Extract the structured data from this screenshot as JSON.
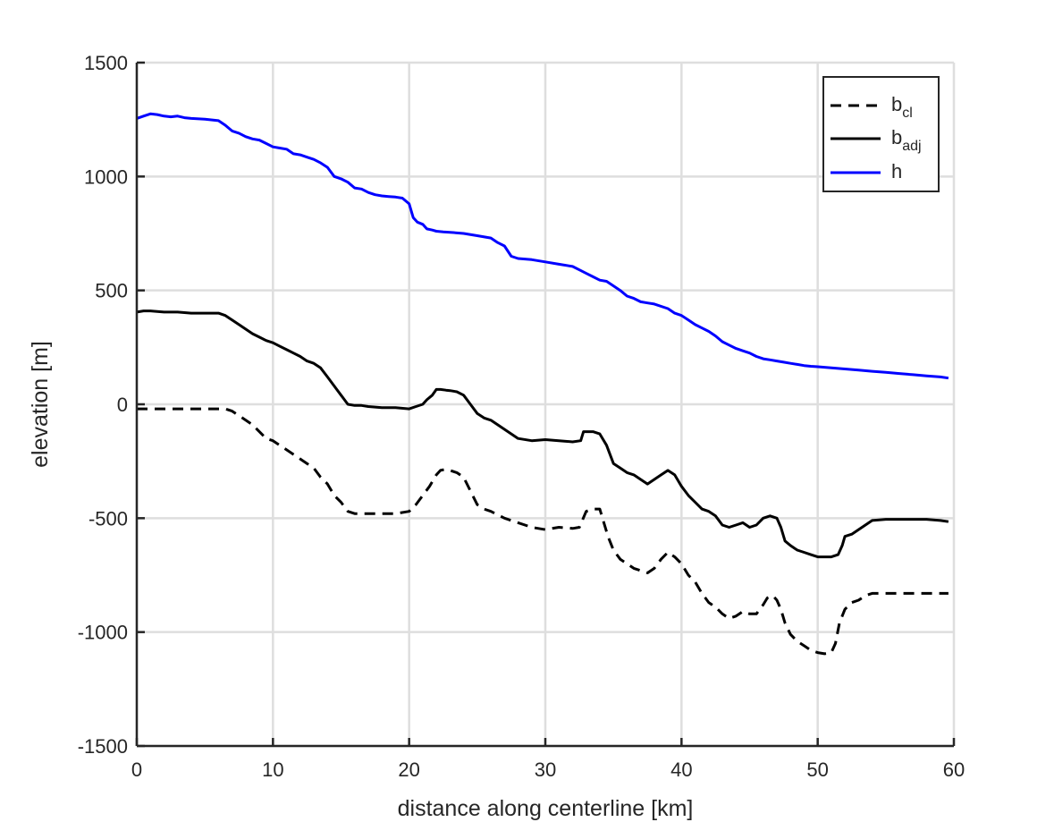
{
  "chart_data": {
    "type": "line",
    "xlabel": "distance along centerline [km]",
    "ylabel": "elevation [m]",
    "xlim": [
      0,
      60
    ],
    "ylim": [
      -1500,
      1500
    ],
    "xticks": [
      0,
      10,
      20,
      30,
      40,
      50,
      60
    ],
    "yticks": [
      -1500,
      -1000,
      -500,
      0,
      500,
      1000,
      1500
    ],
    "xtick_labels": [
      "0",
      "10",
      "20",
      "30",
      "40",
      "50",
      "60"
    ],
    "ytick_labels": [
      "-1500",
      "-1000",
      "-500",
      "0",
      "500",
      "1000",
      "1500"
    ],
    "grid": true,
    "legend_position": "top-right",
    "series": [
      {
        "name": "b_cl",
        "legend_main": "b",
        "legend_sub": "cl",
        "color": "#000000",
        "dash": "dashed",
        "x": [
          0,
          1,
          2,
          3,
          4,
          5,
          6,
          6.5,
          7,
          7.5,
          8,
          8.5,
          9,
          9.5,
          10,
          10.5,
          11,
          11.5,
          12,
          12.5,
          13,
          13.5,
          14,
          14.5,
          15,
          15.5,
          16,
          16.5,
          17,
          18,
          19,
          20,
          20.5,
          21,
          21.5,
          22,
          22.3,
          22.7,
          23,
          23.5,
          24,
          24.5,
          25,
          25.5,
          26,
          27,
          28,
          29,
          30,
          31,
          32,
          32.5,
          33,
          33.5,
          34,
          34.3,
          34.6,
          35,
          35.5,
          36,
          36.5,
          37,
          37.5,
          38,
          38.5,
          39,
          39.5,
          40,
          40.5,
          41,
          41.5,
          42,
          42.5,
          43,
          43.5,
          44,
          44.5,
          45,
          45.5,
          46,
          46.3,
          46.7,
          47,
          47.3,
          47.6,
          48,
          48.5,
          49,
          49.5,
          50,
          50.5,
          51,
          51.3,
          51.6,
          52,
          52.5,
          53,
          53.5,
          54,
          55,
          56,
          57,
          58,
          59,
          59.6
        ],
        "y": [
          -20,
          -20,
          -20,
          -20,
          -20,
          -20,
          -20,
          -20,
          -30,
          -50,
          -70,
          -90,
          -120,
          -150,
          -160,
          -180,
          -200,
          -220,
          -240,
          -260,
          -280,
          -320,
          -350,
          -400,
          -430,
          -470,
          -480,
          -480,
          -480,
          -480,
          -480,
          -470,
          -440,
          -400,
          -360,
          -310,
          -290,
          -285,
          -290,
          -300,
          -320,
          -380,
          -440,
          -460,
          -470,
          -500,
          -520,
          -540,
          -550,
          -540,
          -545,
          -540,
          -470,
          -460,
          -460,
          -520,
          -580,
          -640,
          -680,
          -700,
          -720,
          -730,
          -740,
          -720,
          -680,
          -650,
          -670,
          -700,
          -750,
          -780,
          -830,
          -870,
          -890,
          -920,
          -940,
          -930,
          -910,
          -920,
          -920,
          -880,
          -850,
          -840,
          -860,
          -900,
          -960,
          -1010,
          -1040,
          -1060,
          -1080,
          -1090,
          -1095,
          -1090,
          -1050,
          -960,
          -900,
          -870,
          -860,
          -840,
          -830,
          -830,
          -830,
          -830,
          -830,
          -830,
          -830
        ]
      },
      {
        "name": "b_adj",
        "legend_main": "b",
        "legend_sub": "adj",
        "color": "#000000",
        "dash": "solid",
        "x": [
          0,
          0.5,
          1,
          2,
          3,
          4,
          5,
          6,
          6.5,
          7,
          7.5,
          8,
          8.5,
          9,
          9.5,
          10,
          10.5,
          11,
          11.5,
          12,
          12.5,
          13,
          13.5,
          14,
          14.5,
          15,
          15.5,
          16,
          16.5,
          17,
          18,
          19,
          20,
          20.5,
          21,
          21.3,
          21.7,
          22,
          22.3,
          22.7,
          23,
          23.5,
          24,
          24.5,
          25,
          25.5,
          26,
          27,
          27.5,
          28,
          29,
          30,
          31,
          32,
          32.6,
          32.8,
          33,
          33.5,
          34,
          34.5,
          35,
          35.5,
          36,
          36.5,
          37,
          37.5,
          38,
          38.5,
          39,
          39.5,
          40,
          40.5,
          41,
          41.5,
          42,
          42.5,
          43,
          43.5,
          44,
          44.5,
          45,
          45.5,
          46,
          46.5,
          47,
          47.3,
          47.6,
          48,
          48.5,
          49,
          49.5,
          50,
          50.5,
          51,
          51.5,
          51.8,
          52,
          52.5,
          53,
          53.5,
          54,
          55,
          56,
          57,
          58,
          59,
          59.6
        ],
        "y": [
          405,
          410,
          410,
          405,
          405,
          400,
          400,
          400,
          390,
          370,
          350,
          330,
          310,
          295,
          280,
          270,
          255,
          240,
          225,
          210,
          190,
          180,
          160,
          120,
          80,
          40,
          0,
          -5,
          -5,
          -10,
          -15,
          -15,
          -20,
          -10,
          0,
          20,
          40,
          65,
          65,
          62,
          60,
          55,
          40,
          0,
          -40,
          -60,
          -70,
          -110,
          -130,
          -150,
          -160,
          -155,
          -160,
          -165,
          -160,
          -120,
          -120,
          -120,
          -130,
          -180,
          -260,
          -280,
          -300,
          -310,
          -330,
          -350,
          -330,
          -310,
          -290,
          -310,
          -360,
          -400,
          -430,
          -460,
          -470,
          -490,
          -530,
          -540,
          -530,
          -520,
          -540,
          -530,
          -500,
          -490,
          -500,
          -540,
          -600,
          -620,
          -640,
          -650,
          -660,
          -670,
          -670,
          -670,
          -660,
          -620,
          -580,
          -570,
          -550,
          -530,
          -510,
          -505,
          -505,
          -505,
          -505,
          -510,
          -515
        ]
      },
      {
        "name": "h",
        "legend_main": "h",
        "legend_sub": "",
        "color": "#0000ff",
        "dash": "solid",
        "x": [
          0,
          0.5,
          1,
          1.5,
          2,
          2.5,
          3,
          3.5,
          4,
          5,
          6,
          6.5,
          7,
          7.5,
          8,
          8.5,
          9,
          9.5,
          10,
          10.5,
          11,
          11.5,
          12,
          12.5,
          13,
          13.5,
          14,
          14.5,
          15,
          15.5,
          16,
          16.5,
          17,
          17.5,
          18,
          18.5,
          19,
          19.5,
          20,
          20.3,
          20.6,
          21,
          21.3,
          21.7,
          22,
          22.5,
          23,
          24,
          25,
          26,
          26.5,
          27,
          27.5,
          28,
          29,
          30,
          31,
          32,
          32.5,
          33,
          33.5,
          34,
          34.5,
          35,
          35.5,
          36,
          36.5,
          37,
          37.5,
          38,
          39,
          39.5,
          40,
          40.5,
          41,
          41.5,
          42,
          42.5,
          43,
          43.5,
          44,
          44.5,
          45,
          45.5,
          46,
          46.5,
          47,
          47.5,
          48,
          48.5,
          49,
          49.5,
          50,
          51,
          52,
          53,
          54,
          55,
          56,
          57,
          58,
          59,
          59.6
        ],
        "y": [
          1255,
          1265,
          1275,
          1272,
          1265,
          1262,
          1265,
          1258,
          1255,
          1252,
          1245,
          1225,
          1200,
          1190,
          1175,
          1165,
          1160,
          1145,
          1130,
          1125,
          1120,
          1100,
          1095,
          1085,
          1075,
          1060,
          1040,
          1000,
          990,
          975,
          950,
          945,
          930,
          920,
          915,
          912,
          910,
          905,
          880,
          820,
          800,
          790,
          770,
          765,
          760,
          757,
          755,
          750,
          740,
          730,
          710,
          695,
          650,
          640,
          635,
          625,
          615,
          605,
          590,
          575,
          560,
          545,
          540,
          520,
          500,
          475,
          465,
          450,
          445,
          440,
          420,
          400,
          390,
          370,
          350,
          335,
          320,
          300,
          275,
          260,
          245,
          235,
          225,
          210,
          200,
          195,
          190,
          185,
          180,
          175,
          170,
          167,
          165,
          160,
          155,
          150,
          145,
          140,
          135,
          130,
          125,
          120,
          115
        ]
      }
    ]
  }
}
